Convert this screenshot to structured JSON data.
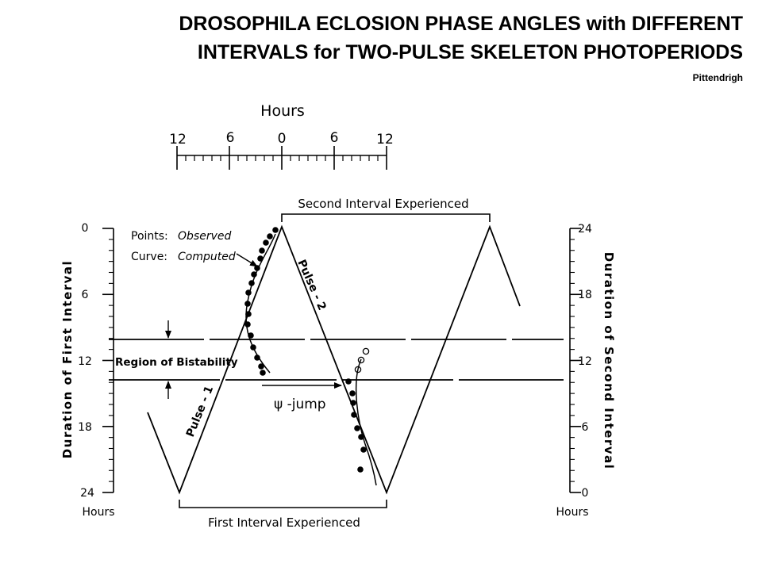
{
  "header": {
    "title_line1": "DROSOPHILA ECLOSION PHASE ANGLES with DIFFERENT",
    "title_line2": "INTERVALS for TWO-PULSE SKELETON PHOTOPERIODS",
    "credit": "Pittendrigh"
  },
  "hours_scale": {
    "label": "Hours",
    "tick_labels": [
      "12",
      "6",
      "0",
      "6",
      "12"
    ]
  },
  "left_axis": {
    "label": "Duration of First Interval",
    "tick_labels": [
      "0",
      "6",
      "12",
      "18",
      "24"
    ],
    "unit": "Hours"
  },
  "right_axis": {
    "label": "Duration of Second Interval",
    "tick_labels": [
      "24",
      "18",
      "12",
      "6",
      "0"
    ],
    "unit": "Hours"
  },
  "annotations": {
    "second_interval": "Second Interval Experienced",
    "first_interval": "First Interval Experienced",
    "points_key": "Points:",
    "points_value": "Observed",
    "curve_key": "Curve:",
    "curve_value": "Computed",
    "bistability": "Region of Bistability",
    "pulse1": "Pulse - 1",
    "pulse2": "Pulse - 2",
    "psi_jump": "ψ -jump"
  }
}
